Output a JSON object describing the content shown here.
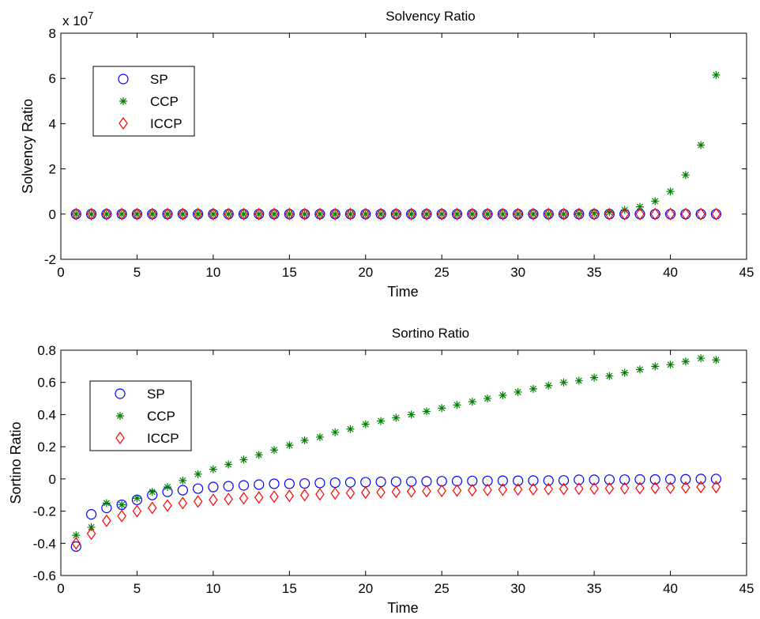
{
  "chart_data": [
    {
      "type": "scatter",
      "title": "Solvency Ratio",
      "xlabel": "Time",
      "ylabel": "Solvency Ratio",
      "xlim": [
        0,
        45
      ],
      "ylim": [
        -2,
        8
      ],
      "y_multiplier_label": "x 10",
      "y_multiplier_exponent": "7",
      "xticks": [
        "0",
        "5",
        "10",
        "15",
        "20",
        "25",
        "30",
        "35",
        "40",
        "45"
      ],
      "yticks": [
        "-2",
        "0",
        "2",
        "4",
        "6",
        "8"
      ],
      "legend_position": "upper-left",
      "x": [
        1,
        2,
        3,
        4,
        5,
        6,
        7,
        8,
        9,
        10,
        11,
        12,
        13,
        14,
        15,
        16,
        17,
        18,
        19,
        20,
        21,
        22,
        23,
        24,
        25,
        26,
        27,
        28,
        29,
        30,
        31,
        32,
        33,
        34,
        35,
        36,
        37,
        38,
        39,
        40,
        41,
        42,
        43
      ],
      "series": [
        {
          "name": "SP",
          "marker": "circle",
          "color": "#0000ff",
          "values": [
            0,
            0,
            0,
            0,
            0,
            0,
            0,
            0,
            0,
            0,
            0,
            0,
            0,
            0,
            0,
            0,
            0,
            0,
            0,
            0,
            0,
            0,
            0,
            0,
            0,
            0,
            0,
            0,
            0,
            0,
            0,
            0,
            0,
            0,
            0,
            0,
            0,
            0,
            0,
            0,
            0,
            0,
            0
          ]
        },
        {
          "name": "CCP",
          "marker": "star",
          "color": "#008000",
          "values": [
            0,
            0,
            0,
            0,
            0,
            0,
            0,
            0,
            0,
            0,
            0,
            0,
            0,
            0,
            0,
            0,
            0,
            0,
            0,
            0,
            0,
            0,
            0,
            0,
            0,
            0,
            0,
            0,
            0,
            0,
            0,
            0,
            0,
            0.01,
            0.03,
            0.08,
            0.18,
            0.32,
            0.57,
            1.0,
            1.73,
            3.05,
            6.15
          ]
        },
        {
          "name": "ICCP",
          "marker": "diamond",
          "color": "#ff0000",
          "values": [
            0,
            0,
            0,
            0,
            0,
            0,
            0,
            0,
            0,
            0,
            0,
            0,
            0,
            0,
            0,
            0,
            0,
            0,
            0,
            0,
            0,
            0,
            0,
            0,
            0,
            0,
            0,
            0,
            0,
            0,
            0,
            0,
            0,
            0,
            0,
            0,
            0,
            0,
            0,
            0,
            0,
            0,
            0
          ]
        }
      ]
    },
    {
      "type": "scatter",
      "title": "Sortino Ratio",
      "xlabel": "Time",
      "ylabel": "Sortino Ratio",
      "xlim": [
        0,
        45
      ],
      "ylim": [
        -0.6,
        0.8
      ],
      "xticks": [
        "0",
        "5",
        "10",
        "15",
        "20",
        "25",
        "30",
        "35",
        "40",
        "45"
      ],
      "yticks": [
        "-0.6",
        "-0.4",
        "-0.2",
        "0",
        "0.2",
        "0.4",
        "0.6",
        "0.8"
      ],
      "legend_position": "upper-left",
      "x": [
        1,
        2,
        3,
        4,
        5,
        6,
        7,
        8,
        9,
        10,
        11,
        12,
        13,
        14,
        15,
        16,
        17,
        18,
        19,
        20,
        21,
        22,
        23,
        24,
        25,
        26,
        27,
        28,
        29,
        30,
        31,
        32,
        33,
        34,
        35,
        36,
        37,
        38,
        39,
        40,
        41,
        42,
        43
      ],
      "series": [
        {
          "name": "SP",
          "marker": "circle",
          "color": "#0000ff",
          "values": [
            -0.42,
            -0.22,
            -0.18,
            -0.16,
            -0.13,
            -0.1,
            -0.08,
            -0.07,
            -0.06,
            -0.05,
            -0.045,
            -0.04,
            -0.035,
            -0.03,
            -0.03,
            -0.028,
            -0.025,
            -0.023,
            -0.021,
            -0.02,
            -0.018,
            -0.017,
            -0.016,
            -0.015,
            -0.014,
            -0.013,
            -0.012,
            -0.012,
            -0.011,
            -0.011,
            -0.01,
            -0.01,
            -0.009,
            -0.005,
            -0.005,
            -0.004,
            -0.004,
            -0.003,
            -0.003,
            -0.002,
            -0.002,
            0.0,
            0.0
          ]
        },
        {
          "name": "CCP",
          "marker": "star",
          "color": "#008000",
          "values": [
            -0.35,
            -0.3,
            -0.15,
            -0.16,
            -0.12,
            -0.08,
            -0.05,
            -0.01,
            0.03,
            0.06,
            0.09,
            0.12,
            0.15,
            0.18,
            0.21,
            0.24,
            0.26,
            0.29,
            0.31,
            0.34,
            0.36,
            0.38,
            0.4,
            0.42,
            0.44,
            0.46,
            0.48,
            0.5,
            0.52,
            0.54,
            0.56,
            0.58,
            0.6,
            0.61,
            0.63,
            0.64,
            0.66,
            0.68,
            0.7,
            0.71,
            0.73,
            0.75,
            0.74
          ]
        },
        {
          "name": "ICCP",
          "marker": "diamond",
          "color": "#ff0000",
          "values": [
            -0.4,
            -0.34,
            -0.26,
            -0.23,
            -0.2,
            -0.18,
            -0.165,
            -0.15,
            -0.14,
            -0.13,
            -0.125,
            -0.12,
            -0.115,
            -0.11,
            -0.105,
            -0.1,
            -0.095,
            -0.09,
            -0.088,
            -0.085,
            -0.083,
            -0.08,
            -0.078,
            -0.076,
            -0.074,
            -0.072,
            -0.07,
            -0.068,
            -0.066,
            -0.065,
            -0.064,
            -0.063,
            -0.062,
            -0.061,
            -0.06,
            -0.059,
            -0.058,
            -0.057,
            -0.056,
            -0.055,
            -0.053,
            -0.05,
            -0.05
          ]
        }
      ]
    }
  ]
}
